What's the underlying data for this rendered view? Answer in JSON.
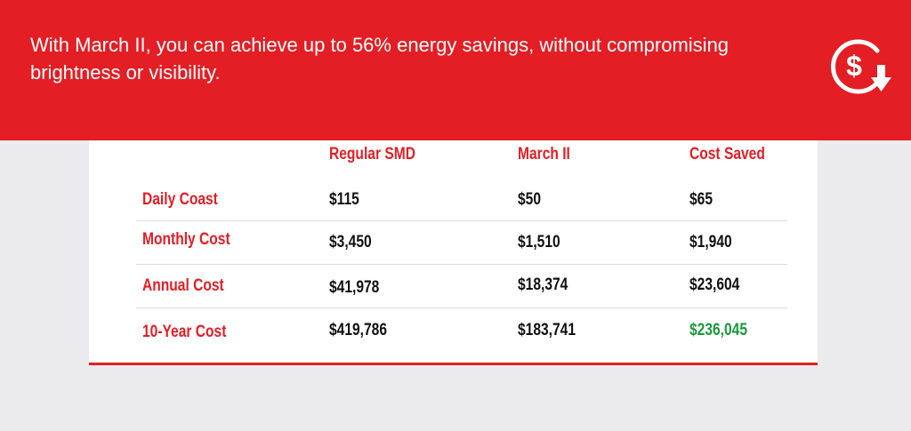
{
  "banner": {
    "headline": "With March II, you can achieve up to 56% energy savings, without compromising brightness or visibility.",
    "icon": "dollar-savings-down-arrow-icon",
    "bg_color": "#e31e24"
  },
  "table": {
    "columns": [
      "Regular SMD",
      "March II",
      "Cost Saved"
    ],
    "rows": [
      {
        "label": "Daily Coast",
        "values": [
          "$115",
          "$50",
          "$65"
        ]
      },
      {
        "label": "Monthly Cost",
        "values": [
          "$3,450",
          "$1,510",
          "$1,940"
        ]
      },
      {
        "label": "Annual Cost",
        "values": [
          "$41,978",
          "$18,374",
          "$23,604"
        ]
      },
      {
        "label": "10-Year Cost",
        "values": [
          "$419,786",
          "$183,741",
          "$236,045"
        ]
      }
    ],
    "header_color": "#e31e24",
    "highlight_color": "#1a9a3c"
  }
}
